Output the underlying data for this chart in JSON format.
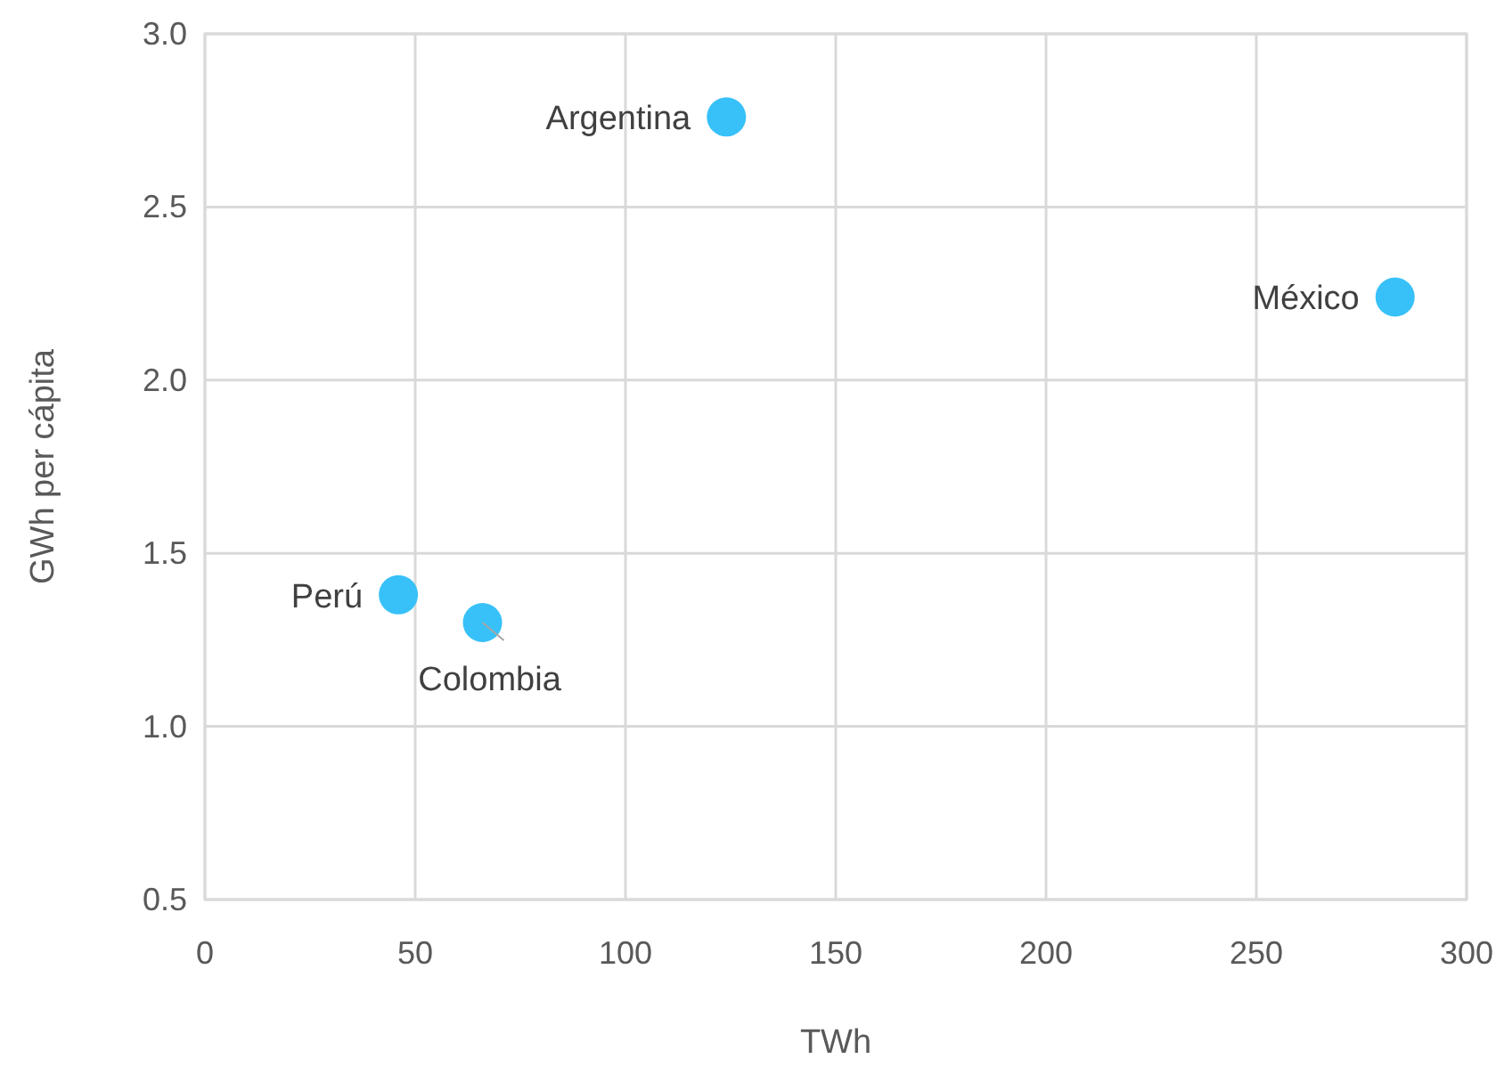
{
  "chart_data": {
    "type": "scatter",
    "xlabel": "TWh",
    "ylabel": "GWh per cápita",
    "x": [
      124,
      283,
      46,
      66
    ],
    "values": [
      2.76,
      2.24,
      1.38,
      1.3
    ],
    "color": "#38c1f8",
    "marker": "circle",
    "grid": true,
    "xlim": [
      0,
      300
    ],
    "xticks": [
      0,
      50,
      100,
      150,
      200,
      250,
      300
    ],
    "ylim": [
      0.5,
      3
    ],
    "yticks": [
      0.5,
      {
        "value": 1,
        "label": "1.0"
      },
      1.5,
      {
        "value": 2,
        "label": "2.0"
      },
      2.5,
      {
        "value": 3,
        "label": "3.0"
      }
    ],
    "annotations": [
      {
        "text": "Argentina",
        "x": 124,
        "y": 2.76
      },
      {
        "text": "México",
        "x": 283,
        "y": 2.24
      },
      {
        "text": "Perú",
        "x": 46,
        "y": 1.38
      },
      {
        "text": "Colombia",
        "x": 66,
        "y": 1.3
      }
    ]
  }
}
